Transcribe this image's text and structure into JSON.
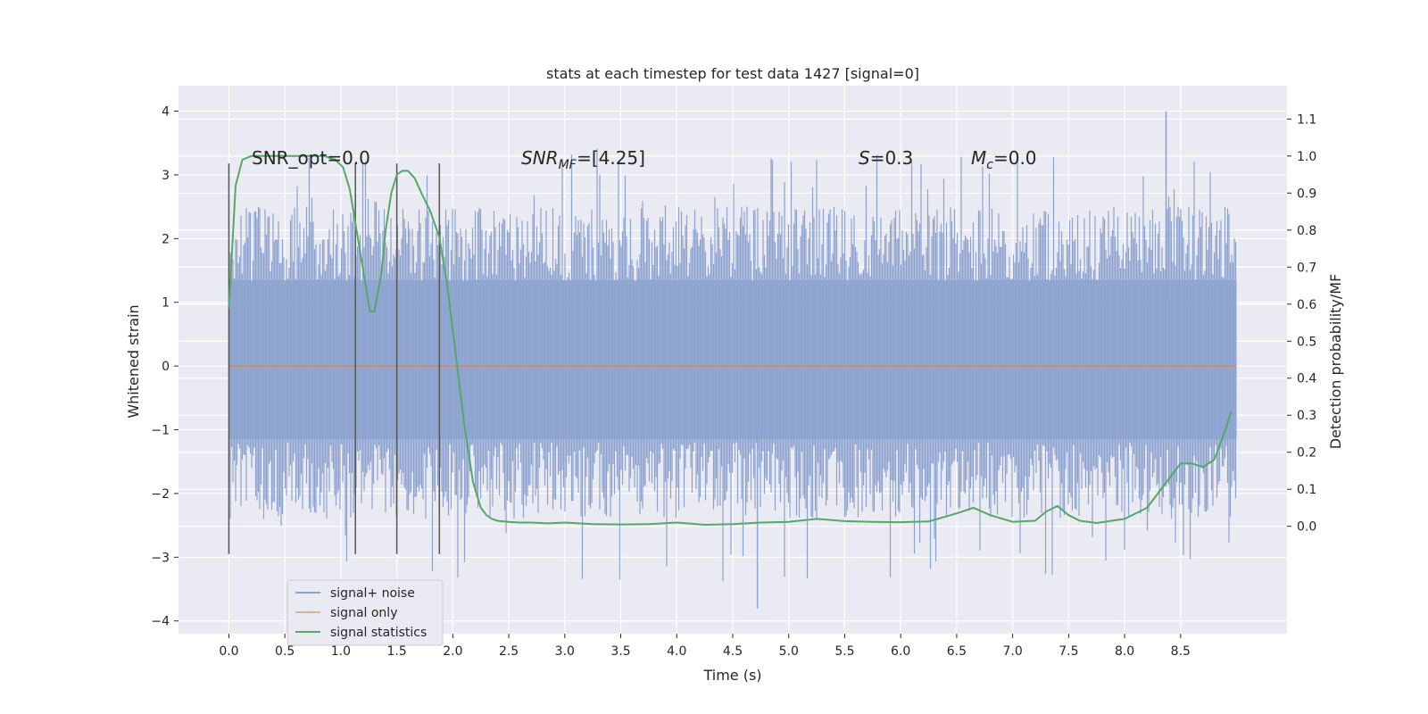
{
  "chart_data": {
    "type": "line",
    "title": "stats at each timestep for test data 1427 [signal=0]",
    "xlabel": "Time (s)",
    "ylabel": "Whitened strain",
    "y2label": "Detection probability/MF",
    "xlim": [
      -0.45,
      9.45
    ],
    "ylim": [
      -4.2,
      4.4
    ],
    "y2lim": [
      -0.29,
      1.19
    ],
    "grid": true,
    "legend_position": "lower-left",
    "x_ticks": [
      "0.0",
      "0.5",
      "1.0",
      "1.5",
      "2.0",
      "2.5",
      "3.0",
      "3.5",
      "4.0",
      "4.5",
      "5.0",
      "5.5",
      "6.0",
      "6.5",
      "7.0",
      "7.5",
      "8.0",
      "8.5"
    ],
    "y_ticks": [
      "4",
      "3",
      "2",
      "1",
      "0",
      "−1",
      "−2",
      "−3",
      "−4"
    ],
    "y2_ticks": [
      "1.1",
      "1.0",
      "0.9",
      "0.8",
      "0.7",
      "0.6",
      "0.5",
      "0.4",
      "0.3",
      "0.2",
      "0.1",
      "0.0"
    ],
    "annotations": {
      "snr_opt": "SNR_opt=0.0",
      "snr_mf_main": "SNR",
      "snr_mf_sub": "MF",
      "snr_mf_val": "=[4.25]",
      "s_var": "S",
      "s_val": "=0.3",
      "mc_main": "M",
      "mc_sub": "c",
      "mc_val": "=0.0"
    },
    "vertical_markers_s": [
      0.0,
      1.13,
      1.5,
      1.88
    ],
    "marker_range": [
      -2.95,
      3.18
    ],
    "series": [
      {
        "name": "signal+ noise",
        "color": "#8da3cf",
        "axis": "left",
        "style": "noise-band",
        "x_range": [
          0.0,
          9.0
        ],
        "band_dense": [
          -1.15,
          1.35
        ],
        "band_sparse": [
          -2.5,
          2.5
        ],
        "peak_max": 4.0,
        "peak_min": -3.8
      },
      {
        "name": "signal only",
        "color": "#dd8452",
        "axis": "left",
        "x": [
          0.0,
          9.0
        ],
        "y": [
          0.0,
          0.0
        ]
      },
      {
        "name": "signal statistics",
        "color": "#55a868",
        "axis": "right",
        "x": [
          0.0,
          0.06,
          0.12,
          0.2,
          0.35,
          0.5,
          0.7,
          0.85,
          0.95,
          1.02,
          1.08,
          1.14,
          1.2,
          1.26,
          1.3,
          1.36,
          1.4,
          1.45,
          1.5,
          1.55,
          1.6,
          1.66,
          1.72,
          1.8,
          1.88,
          1.95,
          2.02,
          2.1,
          2.18,
          2.25,
          2.3,
          2.35,
          2.4,
          2.5,
          2.6,
          2.7,
          2.85,
          3.0,
          3.25,
          3.5,
          3.75,
          4.0,
          4.25,
          4.5,
          4.75,
          5.0,
          5.25,
          5.5,
          5.75,
          6.0,
          6.25,
          6.5,
          6.65,
          6.8,
          7.0,
          7.2,
          7.3,
          7.4,
          7.5,
          7.6,
          7.75,
          8.0,
          8.2,
          8.35,
          8.5,
          8.6,
          8.7,
          8.8,
          8.9,
          8.95
        ],
        "y": [
          0.59,
          0.92,
          0.99,
          1.0,
          1.0,
          1.0,
          1.0,
          1.0,
          0.99,
          0.97,
          0.91,
          0.8,
          0.69,
          0.58,
          0.58,
          0.68,
          0.8,
          0.9,
          0.95,
          0.96,
          0.96,
          0.94,
          0.9,
          0.85,
          0.78,
          0.65,
          0.48,
          0.28,
          0.12,
          0.05,
          0.03,
          0.02,
          0.015,
          0.012,
          0.01,
          0.01,
          0.008,
          0.01,
          0.006,
          0.005,
          0.006,
          0.01,
          0.004,
          0.006,
          0.01,
          0.012,
          0.02,
          0.014,
          0.012,
          0.011,
          0.013,
          0.035,
          0.05,
          0.03,
          0.012,
          0.015,
          0.04,
          0.055,
          0.03,
          0.015,
          0.009,
          0.02,
          0.05,
          0.11,
          0.17,
          0.17,
          0.16,
          0.18,
          0.26,
          0.31
        ]
      }
    ]
  }
}
